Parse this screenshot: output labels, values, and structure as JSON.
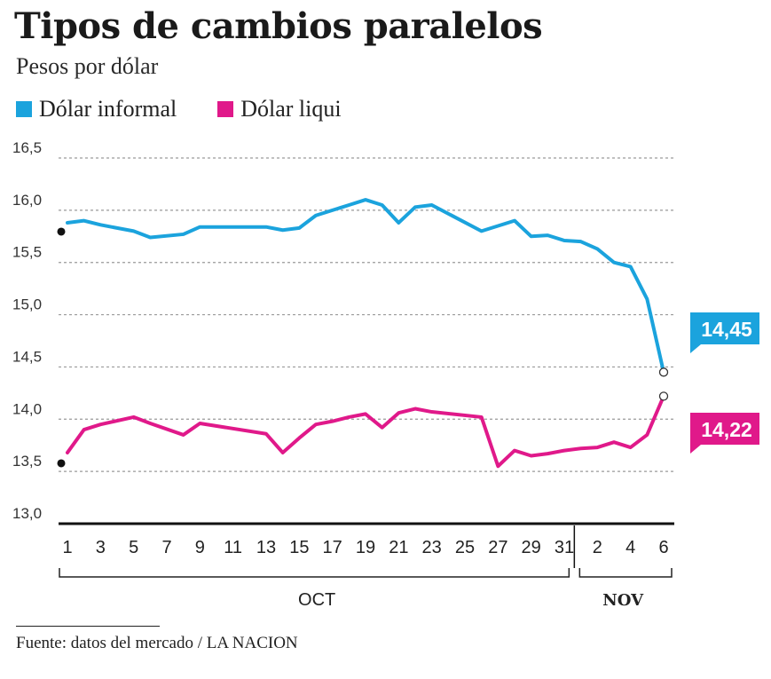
{
  "title": "Tipos de cambios paralelos",
  "subtitle": "Pesos por dólar",
  "source": "Fuente: datos del mercado / LA NACION",
  "chart_data": {
    "type": "line",
    "ylim": [
      13.0,
      16.5
    ],
    "y_ticks": [
      {
        "value": 16.5,
        "label": "16,5"
      },
      {
        "value": 16.0,
        "label": "16,0"
      },
      {
        "value": 15.5,
        "label": "15,5"
      },
      {
        "value": 15.0,
        "label": "15,0"
      },
      {
        "value": 14.5,
        "label": "14,5"
      },
      {
        "value": 14.0,
        "label": "14,0"
      },
      {
        "value": 13.5,
        "label": "13,5"
      },
      {
        "value": 13.0,
        "label": "13,0"
      }
    ],
    "x": [
      "1 Oct",
      "2 Oct",
      "3 Oct",
      "5 Oct",
      "6 Oct",
      "8 Oct",
      "9 Oct",
      "13 Oct",
      "14 Oct",
      "15 Oct",
      "16 Oct",
      "17 Oct",
      "18 Oct",
      "19 Oct",
      "20 Oct",
      "21 Oct",
      "22 Oct",
      "23 Oct",
      "26 Oct",
      "27 Oct",
      "28 Oct",
      "29 Oct",
      "30 Oct",
      "31 Oct",
      "1 Nov",
      "2 Nov",
      "3 Nov",
      "4 Nov",
      "5 Nov",
      "6 Nov"
    ],
    "x_ticks": [
      "1",
      "3",
      "5",
      "7",
      "9",
      "11",
      "13",
      "15",
      "17",
      "19",
      "21",
      "23",
      "25",
      "27",
      "29",
      "31",
      "2",
      "4",
      "6"
    ],
    "month_labels": [
      "OCT",
      "NOV"
    ],
    "grid": true,
    "legend_position": "top-left",
    "series": [
      {
        "name": "Dólar informal",
        "color": "#1ba3dd",
        "values": [
          15.88,
          15.9,
          15.86,
          15.8,
          15.74,
          15.77,
          15.84,
          15.84,
          15.81,
          15.83,
          15.95,
          16.0,
          16.05,
          16.1,
          16.05,
          15.88,
          16.03,
          16.05,
          15.8,
          15.85,
          15.9,
          15.75,
          15.76,
          15.71,
          15.7,
          15.63,
          15.5,
          15.46,
          15.15,
          14.45
        ],
        "end_label": "14,45"
      },
      {
        "name": "Dólar liqui",
        "color": "#e0198a",
        "values": [
          13.68,
          13.9,
          13.95,
          14.02,
          13.96,
          13.85,
          13.96,
          13.86,
          13.68,
          13.82,
          13.95,
          13.98,
          14.02,
          14.05,
          13.92,
          14.06,
          14.1,
          14.07,
          14.02,
          13.55,
          13.7,
          13.65,
          13.67,
          13.7,
          13.72,
          13.73,
          13.78,
          13.73,
          13.85,
          14.22
        ],
        "end_label": "14,22"
      }
    ]
  }
}
